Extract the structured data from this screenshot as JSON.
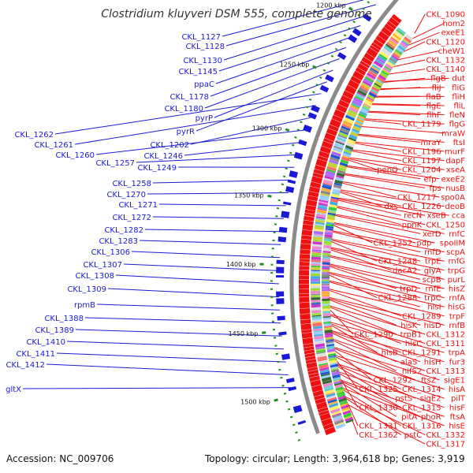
{
  "title": "Clostridium kluyveri DSM 555, complete genome",
  "footer": {
    "accession": "Accession: NC_009706",
    "stats": "Topology: circular; Length: 3,964,618 bp; Genes: 3,919"
  },
  "colors": {
    "backbone": "#8a8a8a",
    "forward_cds": "#1a1ad6",
    "reverse_cds": "#ee1111",
    "tick": "#1f8f1f",
    "label_red": "#ee1111",
    "label_blue": "#1a1ad6"
  },
  "scale_labels": [
    "1200 kbp",
    "1250 kbp",
    "1300 kbp",
    "1350 kbp",
    "1400 kbp",
    "1450 kbp",
    "1500 kbp"
  ],
  "labels_right": [
    "CKL_1090",
    "hom2",
    "exeE1",
    "CKL_1120",
    "cheW1",
    "CKL_1132",
    "CKL_1140",
    "flgB",
    "dut",
    "fliJ",
    "fliG",
    "flaB",
    "fliH",
    "flgE",
    "fliL",
    "flhF",
    "fleN",
    "CKL_1179",
    "flgG",
    "mraW",
    "mraY",
    "ftsI",
    "CKL_1196",
    "murF",
    "CKL_1197",
    "dapF",
    "pepQ",
    "CKL_1204",
    "xseA",
    "efp",
    "exeE2",
    "fps",
    "nusB",
    "CKL_1217",
    "spo0A",
    "dxs",
    "CKL_1226",
    "deoB",
    "recN",
    "xseB",
    "cca",
    "ppnK",
    "CKL_1250",
    "xerD",
    "rnfC",
    "CKL_1252",
    "pdp",
    "spoIIM",
    "rnfD",
    "scpA",
    "CKL_1248",
    "trpE",
    "rnfG",
    "dacA2",
    "glyA",
    "trpG",
    "scpB",
    "purL",
    "trpD",
    "rnfE",
    "hisZ",
    "CKL_1288",
    "trpC",
    "rnfA",
    "hisI",
    "hisG",
    "CKL_1289",
    "trpF",
    "hisK",
    "hisD",
    "rnfB",
    "CKL_1290",
    "trpB1",
    "CKL_1312",
    "hisC",
    "CKL_1311",
    "hisB",
    "CKL_1291",
    "trpA",
    "alaS",
    "hisH",
    "fur3",
    "nifS2",
    "CKL_1313",
    "CKL_1292",
    "ftsZ",
    "sigE1",
    "CKL_1325",
    "CKL_1314",
    "hisA",
    "pstS",
    "sigE2",
    "pilT",
    "CKL_1330",
    "CKL_1315",
    "hisF",
    "pitA",
    "phoR",
    "ftsA",
    "CKL_1331",
    "CKL_1316",
    "hisE",
    "CKL_1362",
    "pstC",
    "CKL_1332",
    "CKL_1317"
  ],
  "labels_left": [
    "CKL_1127",
    "CKL_1128",
    "CKL_1130",
    "CKL_1145",
    "ppaC",
    "CKL_1178",
    "CKL_1180",
    "pyrP",
    "pyrR",
    "CKL_1262",
    "CKL_1261",
    "CKL_1202",
    "CKL_1260",
    "CKL_1246",
    "CKL_1257",
    "CKL_1249",
    "CKL_1258",
    "CKL_1270",
    "CKL_1271",
    "CKL_1272",
    "CKL_1282",
    "CKL_1283",
    "CKL_1306",
    "CKL_1307",
    "CKL_1308",
    "CKL_1309",
    "rpmB",
    "CKL_1388",
    "CKL_1389",
    "CKL_1410",
    "CKL_1411",
    "CKL_1412",
    "gltX"
  ]
}
